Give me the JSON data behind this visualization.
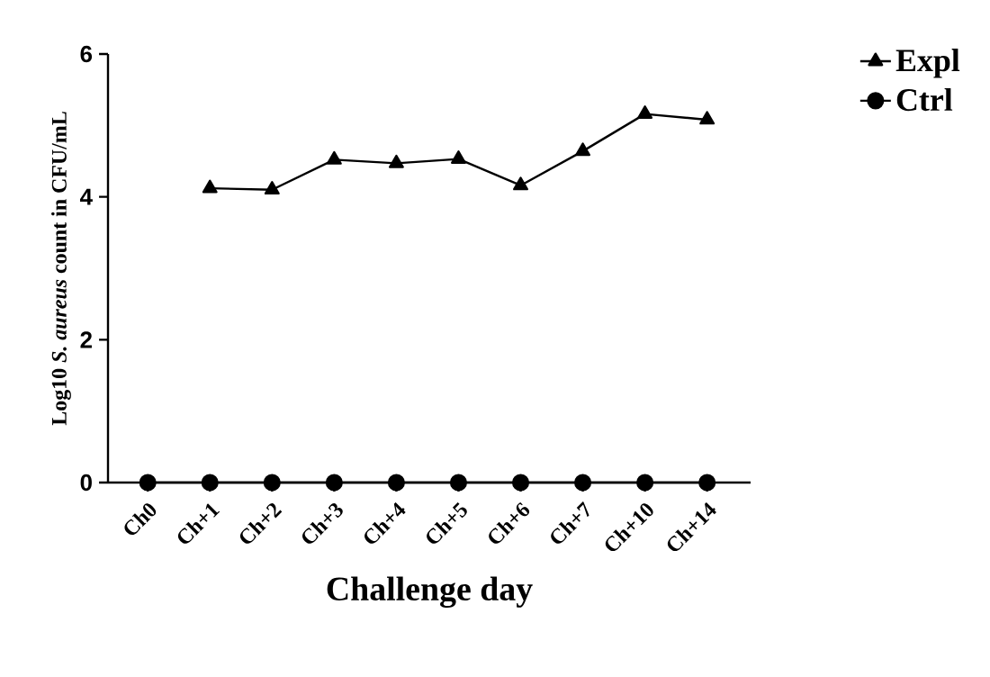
{
  "chart_data": {
    "type": "line",
    "xlabel": "Challenge day",
    "ylabel": "Log10 *S. aureus* count in CFU/mL",
    "categories": [
      "Ch0",
      "Ch+1",
      "Ch+2",
      "Ch+3",
      "Ch+4",
      "Ch+5",
      "Ch+6",
      "Ch+7",
      "Ch+10",
      "Ch+14"
    ],
    "series": [
      {
        "name": "Expl",
        "color": "#000000",
        "marker": "triangle",
        "values": [
          null,
          4.12,
          4.1,
          4.52,
          4.47,
          4.53,
          4.16,
          4.64,
          5.16,
          5.08
        ]
      },
      {
        "name": "Ctrl",
        "color": "#000000",
        "marker": "circle",
        "values": [
          0,
          0,
          0,
          0,
          0,
          0,
          0,
          0,
          0,
          0
        ]
      }
    ],
    "ylim": [
      0,
      6
    ],
    "yticks": [
      0,
      2,
      4,
      6
    ],
    "legend": "top right",
    "line_style": "solid",
    "grid": false
  }
}
